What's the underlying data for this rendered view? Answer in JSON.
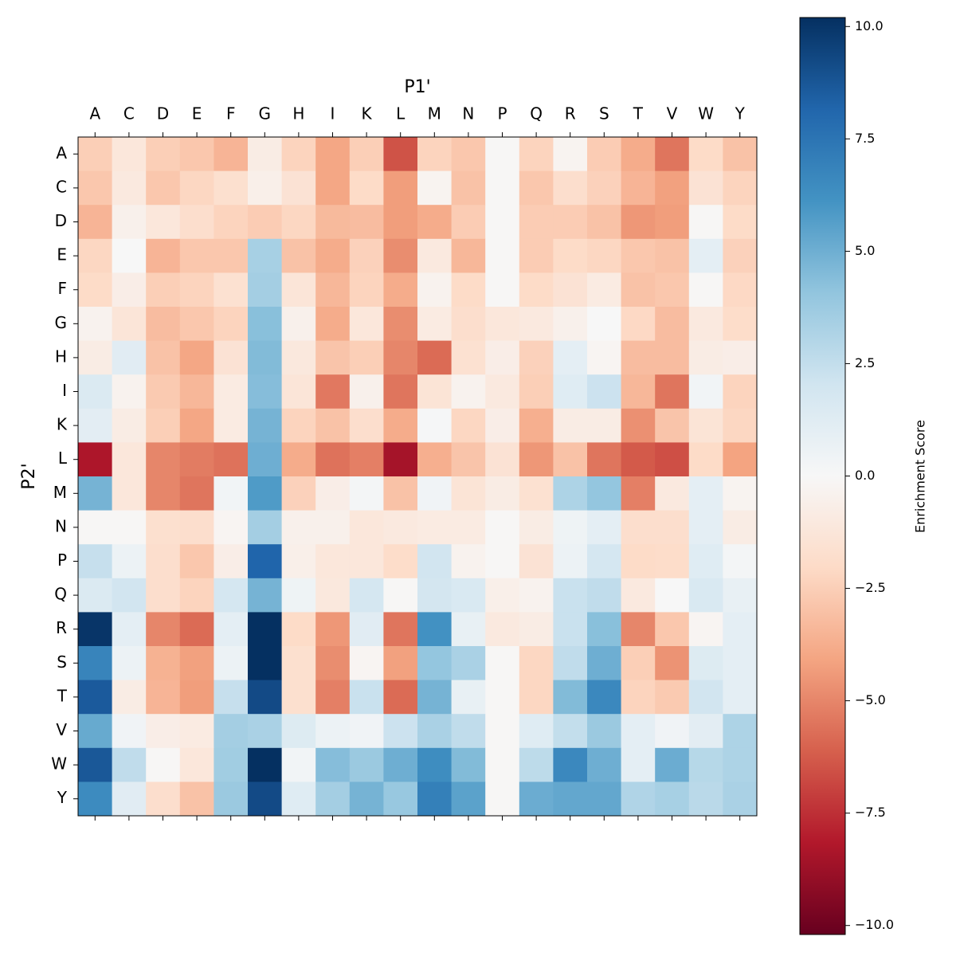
{
  "chart_data": {
    "type": "heatmap",
    "x_label": "P1'",
    "y_label": "P2'",
    "colorbar_label": "Enrichment Score",
    "colormap": "RdBu",
    "x_categories": [
      "A",
      "C",
      "D",
      "E",
      "F",
      "G",
      "H",
      "I",
      "K",
      "L",
      "M",
      "N",
      "P",
      "Q",
      "R",
      "S",
      "T",
      "V",
      "W",
      "Y"
    ],
    "y_categories": [
      "A",
      "C",
      "D",
      "E",
      "F",
      "G",
      "H",
      "I",
      "K",
      "L",
      "M",
      "N",
      "P",
      "Q",
      "R",
      "S",
      "T",
      "V",
      "W",
      "Y"
    ],
    "zlim": [
      -10.2,
      10.2
    ],
    "zticks": [
      {
        "value": -10,
        "label": "−10.0"
      },
      {
        "value": -7.5,
        "label": "−7.5"
      },
      {
        "value": -5,
        "label": "−5.0"
      },
      {
        "value": -2.5,
        "label": "−2.5"
      },
      {
        "value": 0,
        "label": "0.0"
      },
      {
        "value": 2.5,
        "label": "2.5"
      },
      {
        "value": 5,
        "label": "5.0"
      },
      {
        "value": 7.5,
        "label": "7.5"
      },
      {
        "value": 10,
        "label": "10.0"
      }
    ],
    "values": [
      [
        -2.5,
        -1.2,
        -2.5,
        -2.8,
        -3.5,
        -0.8,
        -2.3,
        -4,
        -2.5,
        -6.5,
        -2.3,
        -2.8,
        -0.1,
        -2.3,
        -0.3,
        -2.6,
        -3.8,
        -5.5,
        -2,
        -3
      ],
      [
        -2.8,
        -1,
        -2.8,
        -2.2,
        -1.7,
        -0.6,
        -1.5,
        -4,
        -2,
        -4.3,
        -0.3,
        -3,
        -0.1,
        -2.8,
        -1.8,
        -2.4,
        -3.5,
        -4.2,
        -1.5,
        -2.3
      ],
      [
        -3.5,
        -0.5,
        -1.2,
        -1.8,
        -2.3,
        -2.6,
        -2.2,
        -3.3,
        -3.2,
        -4.3,
        -3.8,
        -2.6,
        -0.1,
        -2.6,
        -2.6,
        -3,
        -4.5,
        -4.3,
        -0.1,
        -2
      ],
      [
        -2.2,
        0,
        -3.5,
        -2.8,
        -2.8,
        3.4,
        -3,
        -3.8,
        -2.4,
        -4.8,
        -1,
        -3.4,
        -0.1,
        -2.6,
        -2,
        -2.2,
        -2.8,
        -3,
        1,
        -2.4
      ],
      [
        -2,
        -0.7,
        -2.5,
        -2.3,
        -1.6,
        3.5,
        -1.3,
        -3.4,
        -2.3,
        -3.8,
        -0.4,
        -2,
        -0.1,
        -2,
        -1.5,
        -0.9,
        -3,
        -2.8,
        -0.1,
        -2.1
      ],
      [
        -0.4,
        -1.3,
        -3.2,
        -2.8,
        -2.3,
        4.3,
        -0.5,
        -3.8,
        -1.2,
        -4.8,
        -0.9,
        -1.8,
        -1.2,
        -1,
        -0.5,
        0,
        -2.1,
        -3.2,
        -1,
        -1.9
      ],
      [
        -0.8,
        1.2,
        -3,
        -4,
        -1.5,
        4.5,
        -1.1,
        -2.9,
        -2.5,
        -5,
        -5.8,
        -1.6,
        -0.7,
        -2.4,
        1,
        -0.2,
        -3.2,
        -3.2,
        -0.8,
        -0.7
      ],
      [
        1.5,
        -0.4,
        -2.7,
        -3.4,
        -0.9,
        4.4,
        -1.3,
        -5.4,
        -0.5,
        -5.5,
        -1.4,
        -0.4,
        -1,
        -2.5,
        1.3,
        2.2,
        -3.4,
        -5.5,
        0.3,
        -2.3
      ],
      [
        1.1,
        -0.8,
        -2.5,
        -4,
        -0.9,
        4.8,
        -2.3,
        -3,
        -1.8,
        -3.8,
        0.1,
        -2.2,
        -0.7,
        -3.7,
        -0.8,
        -0.8,
        -4.7,
        -2.9,
        -1.4,
        -2.2
      ],
      [
        -8.3,
        -1.2,
        -5,
        -5.3,
        -5.6,
        5,
        -3.8,
        -5.6,
        -5.2,
        -8.5,
        -3.7,
        -2.9,
        -1.5,
        -4.5,
        -3,
        -5.5,
        -6.3,
        -6.6,
        -2,
        -4.1
      ],
      [
        4.8,
        -1.2,
        -5,
        -5.5,
        0.3,
        5.8,
        -2.4,
        -0.7,
        0.2,
        -3,
        0.4,
        -1.4,
        -0.8,
        -1.6,
        3.2,
        4,
        -5.2,
        -1,
        1,
        -0.3
      ],
      [
        -0.1,
        -0.1,
        -1.7,
        -1.8,
        -0.2,
        3.5,
        -0.5,
        -0.5,
        -1.2,
        -1,
        -0.9,
        -0.9,
        -0.1,
        -0.8,
        0.5,
        1,
        -1.8,
        -1.8,
        1,
        -0.8
      ],
      [
        2.4,
        0.6,
        -1.8,
        -2.8,
        -0.7,
        8.2,
        -0.6,
        -1.2,
        -1.2,
        -1.9,
        2,
        -0.4,
        -0.1,
        -1.5,
        0.6,
        1.8,
        -2,
        -1.9,
        1.3,
        0.2
      ],
      [
        1.5,
        2,
        -1.8,
        -2.3,
        1.8,
        4.8,
        0.5,
        -1.1,
        1.8,
        -0.1,
        1.9,
        1.6,
        -0.6,
        -0.4,
        2.3,
        2.6,
        -1,
        0,
        1.6,
        0.8
      ],
      [
        10,
        1,
        -5,
        -5.8,
        1,
        10.2,
        -2,
        -4.5,
        1.2,
        -5.5,
        6.2,
        0.8,
        -1,
        -0.8,
        2.3,
        4.3,
        -5,
        -2.8,
        -0.2,
        1
      ],
      [
        6.8,
        0.6,
        -3.6,
        -4.2,
        0.6,
        10.2,
        -1.7,
        -4.8,
        -0.2,
        -4.2,
        4,
        3.3,
        -0.1,
        -2.2,
        2.6,
        5,
        -2.5,
        -4.6,
        1.4,
        1
      ],
      [
        8.6,
        -0.8,
        -3.5,
        -4.3,
        2.4,
        9.2,
        -1.7,
        -5.2,
        2.3,
        -5.8,
        4.8,
        0.8,
        -0.1,
        -2.2,
        4.5,
        6.6,
        -2.3,
        -2.7,
        2,
        1
      ],
      [
        5.2,
        0.4,
        -0.7,
        -0.9,
        3.5,
        3.3,
        1.4,
        0.6,
        0.4,
        2.2,
        3.3,
        2.6,
        -0.1,
        1.3,
        2.5,
        3.8,
        1,
        0.4,
        1.1,
        3.2
      ],
      [
        8.7,
        2.6,
        -0.1,
        -1.2,
        3.6,
        10.2,
        0.3,
        4.4,
        3.8,
        5,
        6.4,
        4.5,
        -0.1,
        2.7,
        6.6,
        5,
        1,
        5.1,
        2.9,
        3.2
      ],
      [
        6.5,
        1.2,
        -1.8,
        -3,
        3.8,
        9.2,
        1.3,
        3.5,
        4.8,
        3.9,
        7,
        5.5,
        -0.1,
        5.1,
        5.3,
        5.3,
        3.1,
        3.4,
        2.8,
        3.3
      ]
    ]
  }
}
